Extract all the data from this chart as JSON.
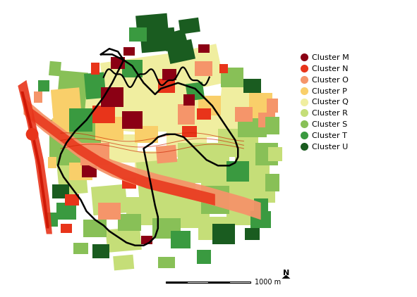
{
  "legend_entries": [
    {
      "label": "Cluster M",
      "color": "#8B0014"
    },
    {
      "label": "Cluster N",
      "color": "#E8341A"
    },
    {
      "label": "Cluster O",
      "color": "#F5956A"
    },
    {
      "label": "Cluster P",
      "color": "#F9CF6A"
    },
    {
      "label": "Cluster Q",
      "color": "#F0EEA0"
    },
    {
      "label": "Cluster R",
      "color": "#C5DE78"
    },
    {
      "label": "Cluster S",
      "color": "#88C057"
    },
    {
      "label": "Cluster T",
      "color": "#3A9A40"
    },
    {
      "label": "Cluster U",
      "color": "#1A5C20"
    }
  ],
  "scale_bar_label": "1000 m",
  "north_label": "N",
  "background_color": "#ffffff",
  "legend_fontsize": 8.0,
  "legend_marker_size": 9,
  "fig_width": 5.91,
  "fig_height": 4.22,
  "map_xlim": [
    0,
    100
  ],
  "map_ylim": [
    0,
    100
  ]
}
